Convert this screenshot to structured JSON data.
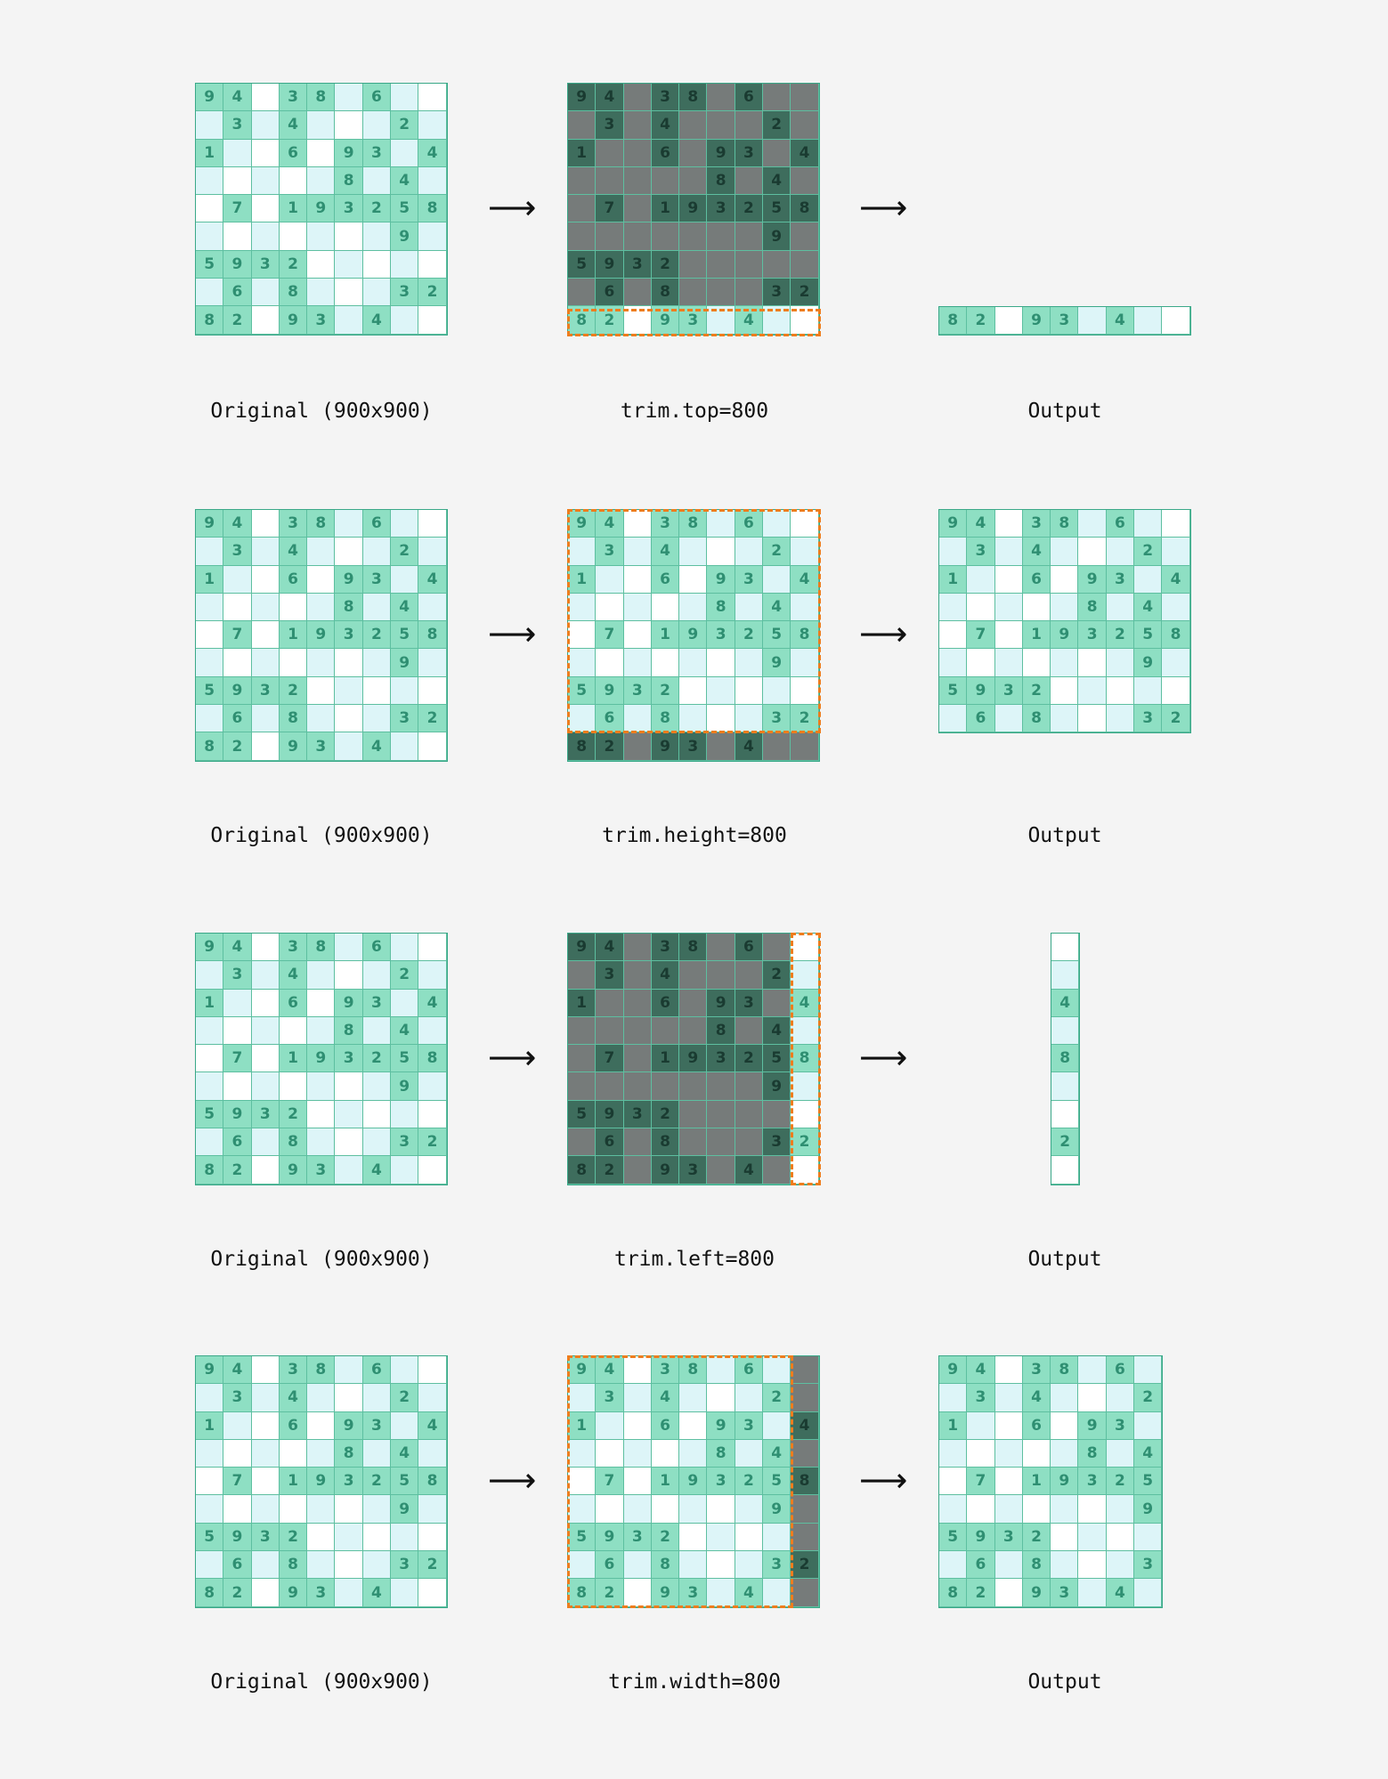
{
  "grid": [
    [
      "9",
      "4",
      "",
      "3",
      "8",
      "",
      "6",
      "",
      ""
    ],
    [
      "",
      "3",
      "",
      "4",
      "",
      "",
      "",
      "2",
      ""
    ],
    [
      "1",
      "",
      "",
      "6",
      "",
      "9",
      "3",
      "",
      "4"
    ],
    [
      "",
      "",
      "",
      "",
      "",
      "8",
      "",
      "4",
      ""
    ],
    [
      "",
      "7",
      "",
      "1",
      "9",
      "3",
      "2",
      "5",
      "8"
    ],
    [
      "",
      "",
      "",
      "",
      "",
      "",
      "",
      "9",
      ""
    ],
    [
      "5",
      "9",
      "3",
      "2",
      "",
      "",
      "",
      "",
      ""
    ],
    [
      "",
      "6",
      "",
      "8",
      "",
      "",
      "",
      "3",
      "2"
    ],
    [
      "8",
      "2",
      "",
      "9",
      "3",
      "",
      "4",
      "",
      ""
    ]
  ],
  "colors": {
    "green": "#8edfc3",
    "light": "#ddf5f8",
    "white": "#ffffff",
    "dim_green": "#3e6d5d",
    "dim_gray": "#767b7a",
    "crop_outline": "#ee7d1d",
    "background": "#f4f4f4"
  },
  "arrow": "⟶",
  "rows": [
    {
      "original_caption": "Original (900x900)",
      "operation_caption": "trim.top=800",
      "output_caption": "Output"
    },
    {
      "original_caption": "Original (900x900)",
      "operation_caption": "trim.height=800",
      "output_caption": "Output"
    },
    {
      "original_caption": "Original (900x900)",
      "operation_caption": "trim.left=800",
      "output_caption": "Output"
    },
    {
      "original_caption": "Original (900x900)",
      "operation_caption": "trim.width=800",
      "output_caption": "Output"
    }
  ]
}
